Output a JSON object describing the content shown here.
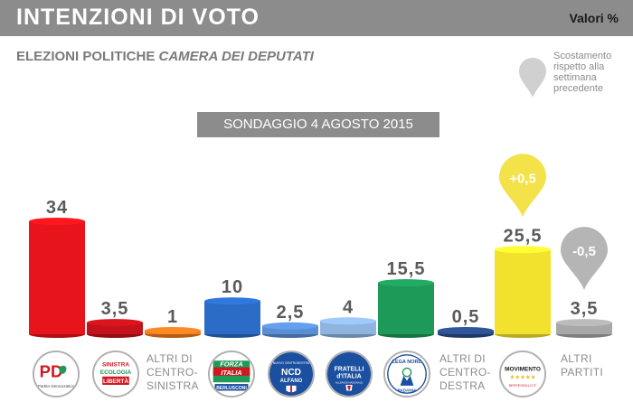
{
  "header": {
    "title": "INTENZIONI DI VOTO",
    "unit_label": "Valori %"
  },
  "subtitle": {
    "prefix": "ELEZIONI POLITICHE",
    "italic": "CAMERA DEI DEPUTATI"
  },
  "legend": {
    "text": "Scostamento rispetto alla settimana precedente"
  },
  "banner": "SONDAGGIO 4 AGOSTO 2015",
  "colors": {
    "header": "#8c8c8c",
    "value_label": "#5a5a5a",
    "yellow_marker": "#f4e24a",
    "grey_marker": "#b5b5b5"
  },
  "chart_data": {
    "type": "bar",
    "categories": [
      "PD",
      "Sinistra Ecologia Libertà",
      "Altri di centro-sinistra",
      "Forza Italia",
      "NCD Alfano",
      "Fratelli d'Italia",
      "Lega Nord",
      "Altri di centro-destra",
      "MoVimento 5 Stelle",
      "Altri partiti"
    ],
    "values": [
      34,
      3.5,
      1,
      10,
      2.5,
      4,
      15.5,
      0.5,
      25.5,
      3.5
    ],
    "value_labels": [
      "34",
      "3,5",
      "1",
      "10",
      "2,5",
      "4",
      "15,5",
      "0,5",
      "25,5",
      "3,5"
    ],
    "bar_colors": [
      "#e8141c",
      "#c4121a",
      "#f07a20",
      "#2a6cc6",
      "#5a8ed4",
      "#8fb4e0",
      "#1e9a58",
      "#2a4d8a",
      "#f2e22e",
      "#a8a8a8"
    ],
    "changes": [
      {
        "category": "MoVimento 5 Stelle",
        "label": "+0,5",
        "value": 0.5,
        "color": "#f4e24a"
      },
      {
        "category": "Altri partiti",
        "label": "-0,5",
        "value": -0.5,
        "color": "#b5b5b5"
      }
    ],
    "ylim": [
      0,
      34
    ]
  },
  "logos": {
    "pd": {
      "name": "PD",
      "caption": "Partito Democratico"
    },
    "sel": {
      "line1": "SINISTRA",
      "line2": "ECOLOGIA",
      "line3": "LIBERTÀ"
    },
    "fi": {
      "line1": "FORZA",
      "line2": "ITALIA",
      "line3": "BERLUSCONI"
    },
    "ncd": {
      "top": "NUOVO CENTRODESTRA",
      "mid": "NCD",
      "bottom": "ALFANO"
    },
    "fdi": {
      "line1": "FRATELLI",
      "line2": "d'ITALIA",
      "line3": "ALLEANZA NAZIONALE"
    },
    "lega": {
      "top": "LEGA NORD",
      "bottom": "PADANIA"
    },
    "m5s": {
      "top": "MOVIMENTO",
      "stars": "★★★★★",
      "bottom": "BEPPEGRILLO.IT"
    }
  },
  "category_labels": {
    "altri_cs": [
      "ALTRI DI",
      "CENTRO-",
      "SINISTRA"
    ],
    "altri_cd": [
      "ALTRI DI",
      "CENTRO-",
      "DESTRA"
    ],
    "altri_partiti": [
      "ALTRI",
      "PARTITI"
    ]
  }
}
